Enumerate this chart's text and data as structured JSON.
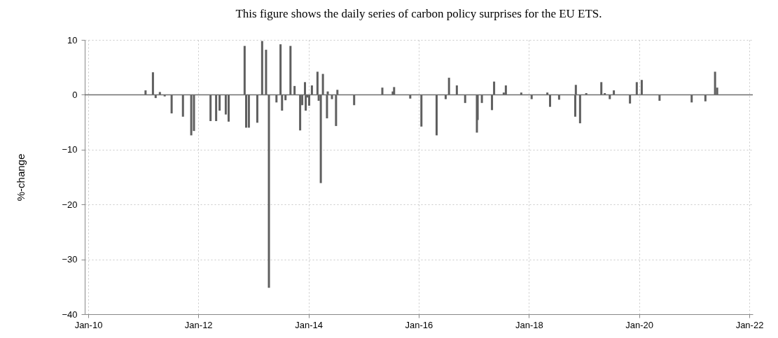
{
  "chart_data": {
    "type": "bar",
    "title": "This figure shows the daily series of carbon policy surprises for the EU ETS.",
    "ylabel": "%-change",
    "x": [
      "2011-01-16",
      "2011-03-06",
      "2011-03-24",
      "2011-04-21",
      "2011-05-23",
      "2011-07-08",
      "2011-09-21",
      "2011-11-15",
      "2011-12-03",
      "2012-03-22",
      "2012-04-28",
      "2012-05-21",
      "2012-07-01",
      "2012-07-20",
      "2012-11-03",
      "2012-11-13",
      "2012-12-01",
      "2013-01-26",
      "2013-02-27",
      "2013-03-25",
      "2013-04-13",
      "2013-06-02",
      "2013-06-29",
      "2013-07-09",
      "2013-08-01",
      "2013-09-03",
      "2013-09-30",
      "2013-11-06",
      "2013-11-20",
      "2013-12-08",
      "2013-12-13",
      "2013-12-22",
      "2014-01-05",
      "2014-01-23",
      "2014-03-01",
      "2014-03-09",
      "2014-03-23",
      "2014-04-06",
      "2014-05-03",
      "2014-05-08",
      "2014-06-05",
      "2014-07-02",
      "2014-07-11",
      "2014-10-30",
      "2015-05-05",
      "2015-07-13",
      "2015-07-22",
      "2015-11-06",
      "2016-01-19",
      "2016-04-29",
      "2016-06-28",
      "2016-07-20",
      "2016-09-10",
      "2016-11-04",
      "2017-01-21",
      "2017-01-26",
      "2017-02-23",
      "2017-05-01",
      "2017-05-15",
      "2017-07-18",
      "2017-08-01",
      "2017-11-11",
      "2018-01-19",
      "2018-05-03",
      "2018-05-21",
      "2018-07-20",
      "2018-11-04",
      "2018-11-08",
      "2018-12-06",
      "2019-01-16",
      "2019-04-26",
      "2019-05-19",
      "2019-06-21",
      "2019-07-18",
      "2019-11-02",
      "2019-12-17",
      "2020-01-19",
      "2020-05-16",
      "2020-12-15",
      "2021-03-16",
      "2021-05-19",
      "2021-06-02"
    ],
    "series": [
      {
        "color": "#5f5f5f",
        "values": [
          0.8,
          4.1,
          -0.6,
          0.5,
          -0.3,
          -3.4,
          -4.0,
          -7.4,
          -6.6,
          -4.8,
          -4.8,
          -2.9,
          -3.6,
          -4.9,
          8.9,
          -6.0,
          -6.0,
          -5.1,
          9.8,
          8.2,
          -35.2,
          -1.4,
          9.2,
          -2.9,
          -1.0,
          8.9,
          1.6,
          -6.5,
          -1.9,
          2.3,
          -2.9,
          -0.5,
          -2.0,
          1.7,
          4.2,
          -1.1,
          -16.1,
          3.8,
          -4.3,
          0.6,
          -0.8,
          -5.7,
          0.9,
          -1.9,
          1.3,
          0.6,
          1.4,
          -0.7,
          -5.8,
          -7.4,
          -0.8,
          3.1,
          1.7,
          -1.5,
          -6.9,
          -4.6,
          -1.5,
          -2.8,
          2.4,
          0.4,
          1.7,
          0.4,
          -0.8,
          0.4,
          -2.2,
          -0.9,
          -4.0,
          1.8,
          -5.2,
          0.3,
          2.3,
          0.3,
          -0.8,
          0.8,
          -1.6,
          2.3,
          2.7,
          -1.1,
          -1.4,
          -1.2,
          4.2,
          1.3
        ]
      }
    ],
    "xlim": [
      "2010-01",
      "2022-01"
    ],
    "xticks": [
      {
        "value": "2010-01",
        "label": "Jan-10"
      },
      {
        "value": "2012-01",
        "label": "Jan-12"
      },
      {
        "value": "2014-01",
        "label": "Jan-14"
      },
      {
        "value": "2016-01",
        "label": "Jan-16"
      },
      {
        "value": "2018-01",
        "label": "Jan-18"
      },
      {
        "value": "2020-01",
        "label": "Jan-20"
      },
      {
        "value": "2022-01",
        "label": "Jan-22"
      }
    ],
    "ylim": [
      -40,
      10
    ],
    "yticks": [
      -40,
      -30,
      -20,
      -10,
      0,
      10
    ],
    "ref_lines": [
      {
        "axis": "y",
        "value": 0,
        "color": "#6e6e6e"
      }
    ],
    "grid": true
  }
}
